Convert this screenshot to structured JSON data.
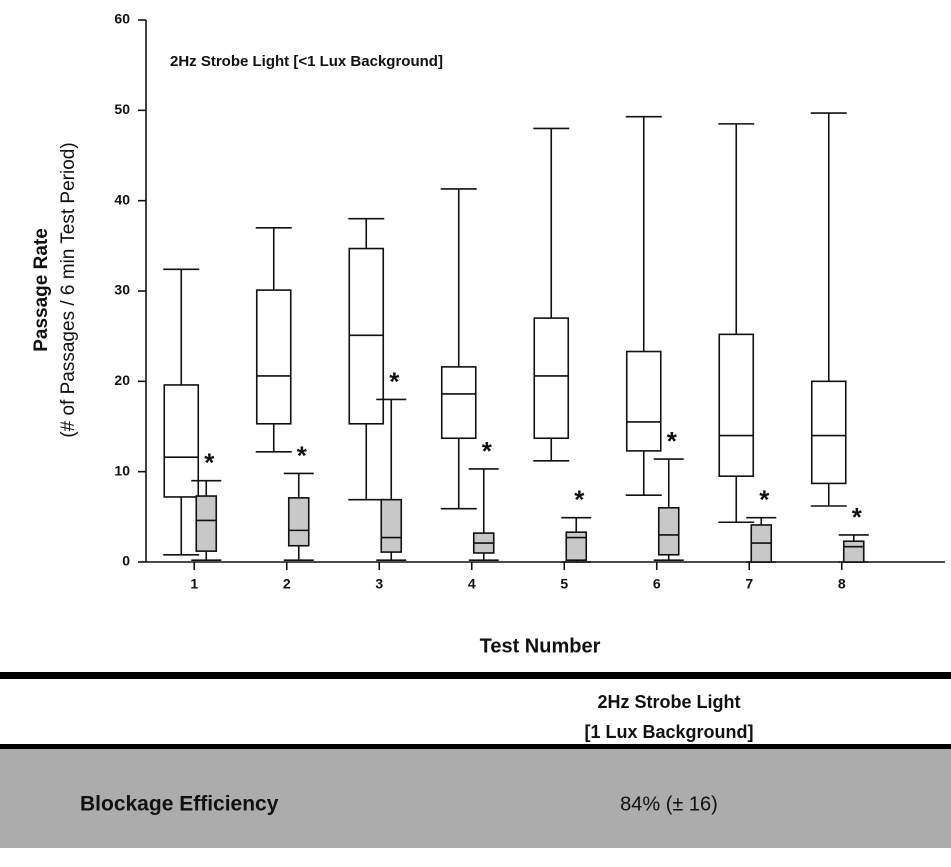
{
  "chart_data": {
    "type": "box",
    "title": "2Hz Strobe Light [<1 Lux Background]",
    "ylabel": [
      "Passage Rate",
      "(# of Passages / 6 min Test Period)"
    ],
    "xlabel": "Test Number",
    "categories": [
      1,
      2,
      3,
      4,
      5,
      6,
      7,
      8
    ],
    "ylim": [
      0,
      60
    ],
    "yticks": [
      0,
      10,
      20,
      30,
      40,
      50,
      60
    ],
    "series": [
      {
        "color": "#ffffff",
        "min": [
          0.8,
          12.2,
          6.9,
          5.9,
          11.2,
          7.4,
          4.4,
          6.2
        ],
        "q1": [
          7.2,
          15.3,
          15.3,
          13.7,
          13.7,
          12.3,
          9.5,
          8.7
        ],
        "median": [
          11.6,
          20.6,
          25.1,
          18.6,
          20.6,
          15.5,
          14,
          14
        ],
        "q3": [
          19.6,
          30.1,
          34.7,
          21.6,
          27,
          23.3,
          25.2,
          20
        ],
        "max": [
          32.4,
          37,
          38,
          41.3,
          48,
          49.3,
          48.5,
          49.7
        ]
      },
      {
        "color": "#c8c8c8",
        "min": [
          0.2,
          0.2,
          0.2,
          0.2,
          0,
          0.2,
          0,
          0
        ],
        "q1": [
          1.2,
          1.8,
          1.1,
          1,
          0.2,
          0.8,
          0,
          0
        ],
        "median": [
          4.6,
          3.5,
          2.7,
          2.1,
          2.7,
          3,
          2.1,
          1.7
        ],
        "q3": [
          7.3,
          7.1,
          6.9,
          3.2,
          3.3,
          6,
          4.1,
          2.3
        ],
        "max": [
          9,
          9.8,
          18,
          10.3,
          4.9,
          11.4,
          4.9,
          3
        ],
        "annotations": [
          "*",
          "*",
          "*",
          "*",
          "*",
          "*",
          "*",
          "*"
        ]
      }
    ]
  },
  "table": {
    "header": [
      "2Hz Strobe Light",
      "[1 Lux Background]"
    ],
    "row": [
      "Blockage Efficiency",
      "84% (± 16)"
    ]
  }
}
